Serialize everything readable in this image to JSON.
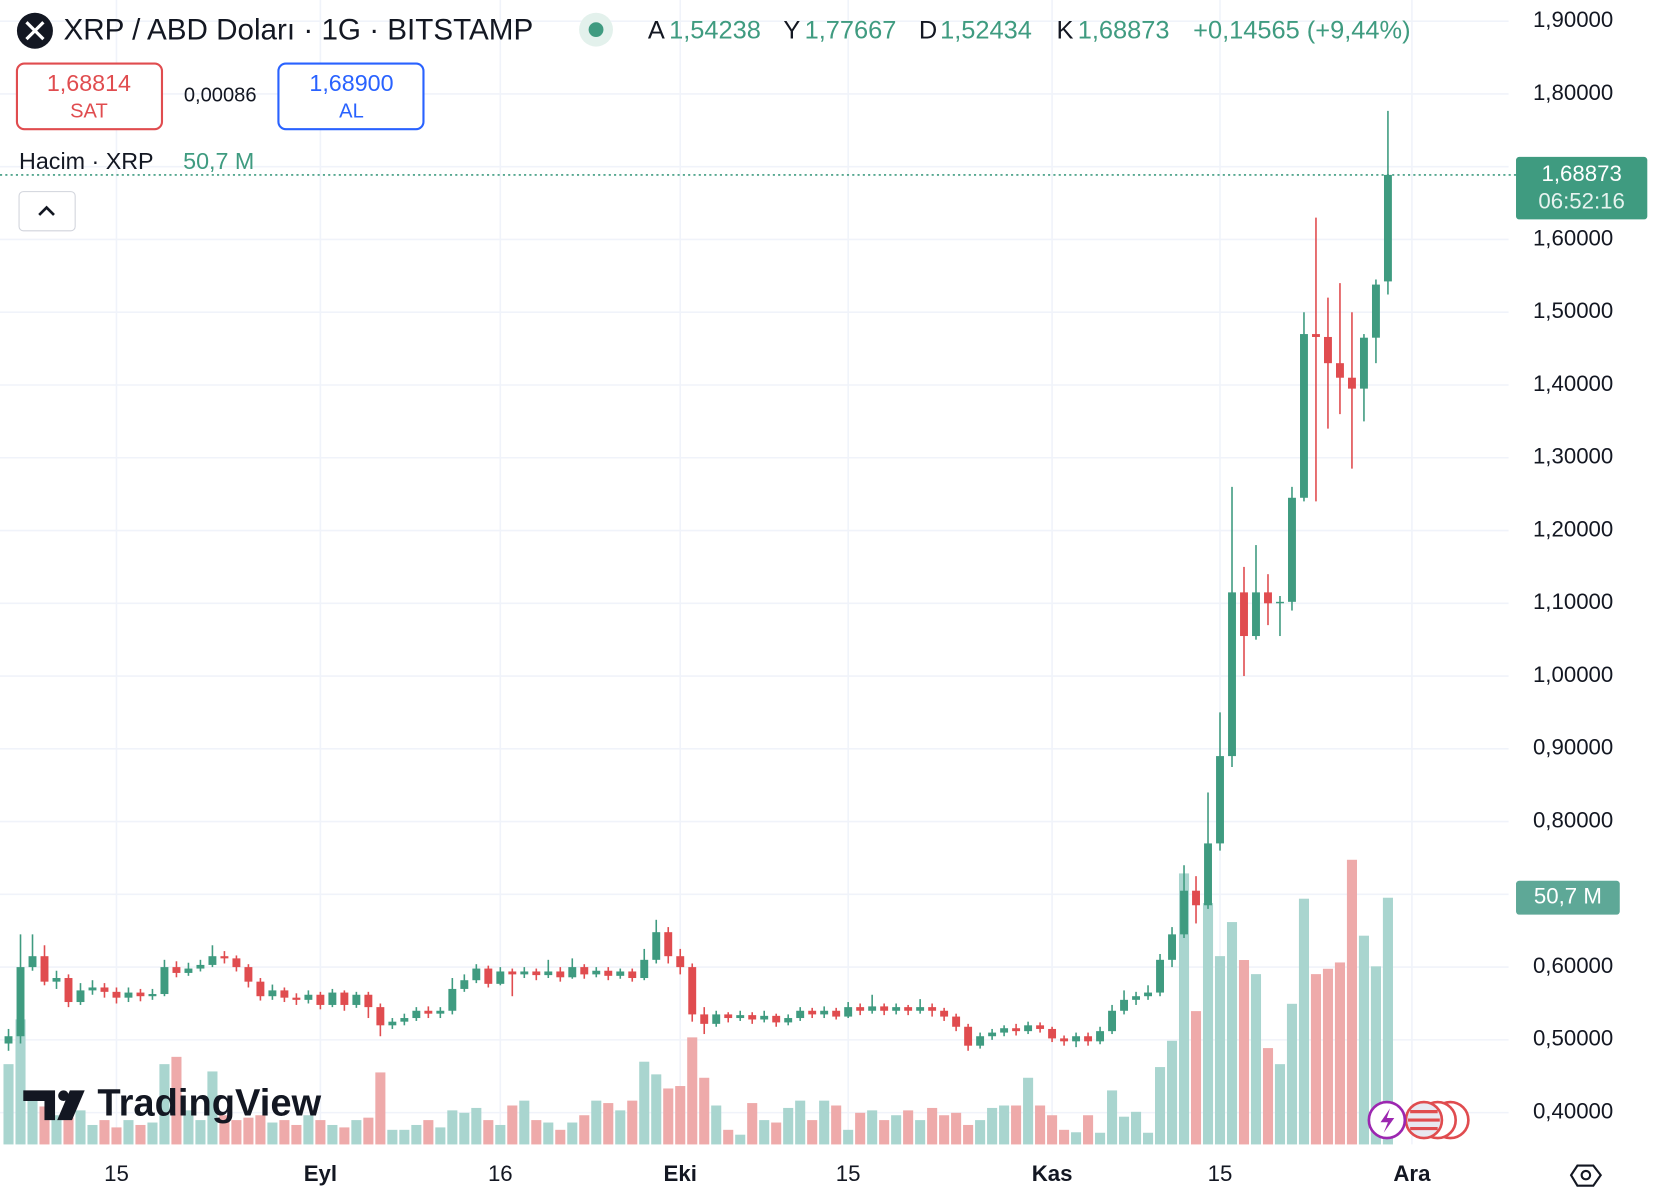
{
  "header": {
    "title": "XRP / ABD Doları · 1G · BITSTAMP",
    "ohlc": [
      {
        "key": "A",
        "value": "1,54238"
      },
      {
        "key": "Y",
        "value": "1,77667"
      },
      {
        "key": "D",
        "value": "1,52434"
      },
      {
        "key": "K",
        "value": "1,68873"
      }
    ],
    "change": "+0,14565 (+9,44%)"
  },
  "trade": {
    "sell_price": "1,68814",
    "sell_label": "SAT",
    "spread": "0,00086",
    "buy_price": "1,68900",
    "buy_label": "AL"
  },
  "volume_legend": {
    "label": "Hacim · XRP",
    "value": "50,7 M"
  },
  "price_tag": {
    "price": "1,68873",
    "countdown": "06:52:16"
  },
  "volume_tag": "50,7 M",
  "logo": "TradingView",
  "chart_data": {
    "type": "candlestick",
    "up_color": "#3f9b80",
    "down_color": "#e04c4f",
    "volume_up_color": "#a9d5cf",
    "volume_down_color": "#eeaaaa",
    "grid": true,
    "xlim": [
      -0.71,
      125.06
    ],
    "xticks": [
      {
        "value": 9,
        "label": "15"
      },
      {
        "value": 26,
        "label": "Eyl"
      },
      {
        "value": 41,
        "label": "16"
      },
      {
        "value": 56,
        "label": "Eki"
      },
      {
        "value": 70,
        "label": "15"
      },
      {
        "value": 87,
        "label": "Kas"
      },
      {
        "value": 101,
        "label": "15"
      },
      {
        "value": 117,
        "label": "Ara"
      }
    ],
    "ylim": [
      0.3563,
      1.9291
    ],
    "yticks": [
      {
        "value": 0.4,
        "label": "0,40000"
      },
      {
        "value": 0.5,
        "label": "0,50000"
      },
      {
        "value": 0.6,
        "label": "0,60000"
      },
      {
        "value": 0.7,
        "label": "0,70000"
      },
      {
        "value": 0.8,
        "label": "0,80000"
      },
      {
        "value": 0.9,
        "label": "0,90000"
      },
      {
        "value": 1.0,
        "label": "1,00000"
      },
      {
        "value": 1.1,
        "label": "1,10000"
      },
      {
        "value": 1.2,
        "label": "1,20000"
      },
      {
        "value": 1.3,
        "label": "1,30000"
      },
      {
        "value": 1.4,
        "label": "1,40000"
      },
      {
        "value": 1.5,
        "label": "1,50000"
      },
      {
        "value": 1.6,
        "label": "1,60000"
      },
      {
        "value": 1.7,
        "label": "1,70000"
      },
      {
        "value": 1.8,
        "label": "1,80000"
      },
      {
        "value": 1.9,
        "label": "1,90000"
      }
    ],
    "y2lim": [
      0,
      235.2
    ],
    "x": [
      0,
      1,
      2,
      3,
      4,
      5,
      6,
      7,
      8,
      9,
      10,
      11,
      12,
      13,
      14,
      15,
      16,
      17,
      18,
      19,
      20,
      21,
      22,
      23,
      24,
      25,
      26,
      27,
      28,
      29,
      30,
      31,
      32,
      33,
      34,
      35,
      36,
      37,
      38,
      39,
      40,
      41,
      42,
      43,
      44,
      45,
      46,
      47,
      48,
      49,
      50,
      51,
      52,
      53,
      54,
      55,
      56,
      57,
      58,
      59,
      60,
      61,
      62,
      63,
      64,
      65,
      66,
      67,
      68,
      69,
      70,
      71,
      72,
      73,
      74,
      75,
      76,
      77,
      78,
      79,
      80,
      81,
      82,
      83,
      84,
      85,
      86,
      87,
      88,
      89,
      90,
      91,
      92,
      93,
      94,
      95,
      96,
      97,
      98,
      99,
      100,
      101,
      102,
      103,
      104,
      105,
      106,
      107,
      108,
      109,
      110,
      111,
      112,
      113,
      114,
      115
    ],
    "open": [
      0.495,
      0.505,
      0.6,
      0.615,
      0.58,
      0.585,
      0.552,
      0.568,
      0.572,
      0.566,
      0.558,
      0.565,
      0.56,
      0.563,
      0.6,
      0.592,
      0.598,
      0.603,
      0.615,
      0.612,
      0.6,
      0.58,
      0.56,
      0.568,
      0.558,
      0.555,
      0.562,
      0.548,
      0.565,
      0.548,
      0.562,
      0.545,
      0.52,
      0.525,
      0.53,
      0.54,
      0.536,
      0.54,
      0.57,
      0.582,
      0.598,
      0.577,
      0.594,
      0.59,
      0.594,
      0.589,
      0.594,
      0.586,
      0.6,
      0.59,
      0.595,
      0.588,
      0.594,
      0.585,
      0.61,
      0.648,
      0.615,
      0.6,
      0.535,
      0.522,
      0.535,
      0.53,
      0.534,
      0.528,
      0.533,
      0.524,
      0.53,
      0.54,
      0.535,
      0.54,
      0.532,
      0.545,
      0.54,
      0.546,
      0.54,
      0.545,
      0.54,
      0.545,
      0.54,
      0.532,
      0.518,
      0.492,
      0.505,
      0.51,
      0.516,
      0.512,
      0.52,
      0.515,
      0.502,
      0.498,
      0.505,
      0.498,
      0.512,
      0.54,
      0.555,
      0.56,
      0.565,
      0.61,
      0.645,
      0.705,
      0.685,
      0.77,
      0.89,
      1.115,
      1.055,
      1.115,
      1.1,
      1.102,
      1.245,
      1.47,
      1.466,
      1.43,
      1.41,
      1.395,
      1.465,
      1.54238
    ],
    "high": [
      0.515,
      0.645,
      0.645,
      0.63,
      0.595,
      0.59,
      0.578,
      0.582,
      0.578,
      0.572,
      0.572,
      0.57,
      0.57,
      0.61,
      0.608,
      0.606,
      0.61,
      0.63,
      0.622,
      0.616,
      0.604,
      0.585,
      0.576,
      0.572,
      0.564,
      0.568,
      0.566,
      0.57,
      0.568,
      0.566,
      0.566,
      0.55,
      0.53,
      0.536,
      0.545,
      0.546,
      0.545,
      0.585,
      0.59,
      0.604,
      0.602,
      0.6,
      0.598,
      0.6,
      0.598,
      0.61,
      0.6,
      0.612,
      0.604,
      0.6,
      0.6,
      0.598,
      0.598,
      0.625,
      0.665,
      0.655,
      0.625,
      0.605,
      0.545,
      0.54,
      0.538,
      0.54,
      0.538,
      0.54,
      0.536,
      0.535,
      0.545,
      0.544,
      0.546,
      0.544,
      0.552,
      0.55,
      0.562,
      0.55,
      0.55,
      0.548,
      0.556,
      0.55,
      0.544,
      0.536,
      0.522,
      0.51,
      0.515,
      0.52,
      0.522,
      0.525,
      0.524,
      0.518,
      0.506,
      0.51,
      0.51,
      0.518,
      0.548,
      0.568,
      0.566,
      0.575,
      0.618,
      0.655,
      0.74,
      0.725,
      0.84,
      0.95,
      1.26,
      1.15,
      1.18,
      1.14,
      1.11,
      1.26,
      1.5,
      1.63,
      1.52,
      1.54,
      1.5,
      1.47,
      1.545,
      1.77667
    ],
    "low": [
      0.485,
      0.495,
      0.595,
      0.575,
      0.57,
      0.545,
      0.548,
      0.562,
      0.558,
      0.55,
      0.552,
      0.553,
      0.555,
      0.56,
      0.586,
      0.588,
      0.594,
      0.6,
      0.605,
      0.594,
      0.572,
      0.554,
      0.555,
      0.552,
      0.548,
      0.55,
      0.542,
      0.545,
      0.54,
      0.544,
      0.53,
      0.505,
      0.515,
      0.52,
      0.526,
      0.53,
      0.53,
      0.535,
      0.566,
      0.578,
      0.572,
      0.575,
      0.56,
      0.585,
      0.582,
      0.585,
      0.58,
      0.584,
      0.584,
      0.586,
      0.582,
      0.584,
      0.58,
      0.582,
      0.605,
      0.605,
      0.59,
      0.525,
      0.508,
      0.518,
      0.524,
      0.526,
      0.522,
      0.524,
      0.518,
      0.52,
      0.526,
      0.53,
      0.53,
      0.528,
      0.53,
      0.534,
      0.536,
      0.534,
      0.535,
      0.534,
      0.536,
      0.532,
      0.526,
      0.512,
      0.485,
      0.488,
      0.5,
      0.505,
      0.506,
      0.508,
      0.51,
      0.497,
      0.492,
      0.49,
      0.492,
      0.494,
      0.508,
      0.535,
      0.548,
      0.555,
      0.56,
      0.6,
      0.64,
      0.66,
      0.68,
      0.76,
      0.875,
      1.0,
      1.05,
      1.07,
      1.055,
      1.09,
      1.24,
      1.24,
      1.34,
      1.36,
      1.285,
      1.35,
      1.43,
      1.52434
    ],
    "close": [
      0.505,
      0.6,
      0.615,
      0.58,
      0.585,
      0.552,
      0.568,
      0.572,
      0.566,
      0.558,
      0.565,
      0.56,
      0.563,
      0.6,
      0.592,
      0.598,
      0.603,
      0.615,
      0.612,
      0.6,
      0.58,
      0.56,
      0.568,
      0.558,
      0.555,
      0.562,
      0.548,
      0.565,
      0.548,
      0.562,
      0.545,
      0.52,
      0.525,
      0.53,
      0.54,
      0.536,
      0.54,
      0.57,
      0.582,
      0.598,
      0.577,
      0.594,
      0.59,
      0.594,
      0.589,
      0.594,
      0.586,
      0.6,
      0.59,
      0.595,
      0.588,
      0.594,
      0.585,
      0.61,
      0.648,
      0.615,
      0.6,
      0.535,
      0.522,
      0.535,
      0.53,
      0.534,
      0.528,
      0.533,
      0.524,
      0.53,
      0.54,
      0.535,
      0.54,
      0.532,
      0.545,
      0.54,
      0.546,
      0.54,
      0.545,
      0.54,
      0.545,
      0.54,
      0.532,
      0.518,
      0.492,
      0.505,
      0.51,
      0.516,
      0.512,
      0.52,
      0.515,
      0.502,
      0.498,
      0.505,
      0.498,
      0.512,
      0.54,
      0.555,
      0.56,
      0.565,
      0.61,
      0.645,
      0.705,
      0.685,
      0.77,
      0.89,
      1.115,
      1.055,
      1.115,
      1.1,
      1.102,
      1.245,
      1.47,
      1.466,
      1.43,
      1.41,
      1.395,
      1.465,
      1.538,
      1.68873
    ],
    "volume": [
      16.5,
      25.7,
      10,
      7.8,
      6,
      5.5,
      7,
      4,
      5,
      3.5,
      5,
      4,
      4.5,
      16.5,
      18,
      7,
      5,
      15,
      6,
      5,
      5.5,
      6,
      4.5,
      5,
      4,
      6,
      5,
      4,
      3.5,
      5,
      5.5,
      14.8,
      3,
      3,
      4,
      5,
      3.5,
      7,
      6.5,
      7.5,
      5,
      4,
      8,
      9,
      5,
      4.5,
      3,
      4.5,
      6,
      9,
      8.5,
      7,
      9,
      17,
      14.4,
      11.5,
      12,
      22,
      13.7,
      8,
      3,
      2,
      8.5,
      5,
      4.5,
      7.5,
      9,
      5,
      9,
      8,
      3,
      6.5,
      7,
      5,
      6,
      7,
      5,
      7.5,
      6,
      6.5,
      4,
      5,
      7.5,
      8,
      8,
      13.7,
      8,
      6,
      3,
      2.5,
      6,
      2.4,
      11.1,
      5.7,
      6.7,
      2.4,
      15.9,
      21.3,
      55.7,
      27.4,
      49.6,
      38.7,
      45.7,
      37.9,
      35,
      19.8,
      16.5,
      28.9,
      50.5,
      35,
      36.1,
      37.4,
      58.5,
      42.9,
      36.6,
      50.7
    ]
  }
}
